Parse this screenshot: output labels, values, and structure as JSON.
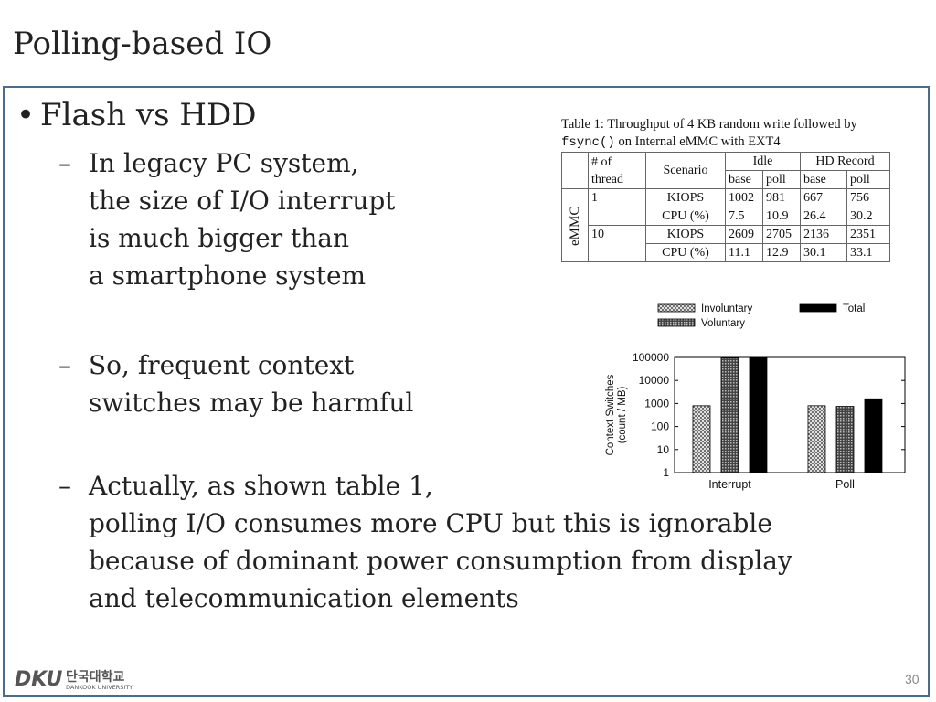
{
  "slide": {
    "title": "Polling-based IO",
    "bullet": "Flash vs HDD",
    "sub1": [
      "In legacy PC system,",
      "the size of I/O interrupt",
      "is much bigger than",
      "a smartphone system"
    ],
    "sub2": [
      "So, frequent context",
      "switches may be harmful"
    ],
    "sub3": [
      "Actually, as shown table 1,",
      "polling I/O consumes more CPU but this is ignorable",
      "because of dominant power consumption from display",
      "and telecommunication elements"
    ],
    "dash": "–",
    "dot": "•",
    "page_number": "30"
  },
  "table": {
    "caption_a": "Table 1: Throughput of 4 KB random write followed by",
    "caption_mono": "fsync()",
    "caption_b": " on Internal eMMC with EXT4",
    "h_thread": [
      "# of",
      "thread"
    ],
    "h_scenario": "Scenario",
    "h_idle": "Idle",
    "h_hd": "HD Record",
    "h_base": "base",
    "h_poll": "poll",
    "device": "eMMC",
    "rows": [
      {
        "thread": "1",
        "metric": "KIOPS",
        "v": [
          "1002",
          "981",
          "667",
          "756"
        ]
      },
      {
        "metric": "CPU (%)",
        "v": [
          "7.5",
          "10.9",
          "26.4",
          "30.2"
        ]
      },
      {
        "thread": "10",
        "metric": "KIOPS",
        "v": [
          "2609",
          "2705",
          "2136",
          "2351"
        ]
      },
      {
        "metric": "CPU (%)",
        "v": [
          "11.1",
          "12.9",
          "30.1",
          "33.1"
        ]
      }
    ]
  },
  "chart_data": {
    "type": "bar",
    "log_scale": true,
    "categories": [
      "Interrupt",
      "Poll"
    ],
    "series": [
      {
        "name": "Involuntary",
        "values": [
          800,
          800
        ],
        "pattern": "crosshatch"
      },
      {
        "name": "Voluntary",
        "values": [
          95000,
          750
        ],
        "pattern": "dense"
      },
      {
        "name": "Total",
        "values": [
          95000,
          1600
        ],
        "color": "#000000"
      }
    ],
    "ylabel": [
      "Context Switches",
      "(count / MB)"
    ],
    "yticks": [
      "1",
      "10",
      "100",
      "1000",
      "10000",
      "100000"
    ],
    "ylim": [
      1,
      100000
    ],
    "legend": "top"
  },
  "footer": {
    "logo_text": "DKU",
    "uni_ko": "단국대학교",
    "uni_en": "DANKOOK UNIVERSITY"
  }
}
